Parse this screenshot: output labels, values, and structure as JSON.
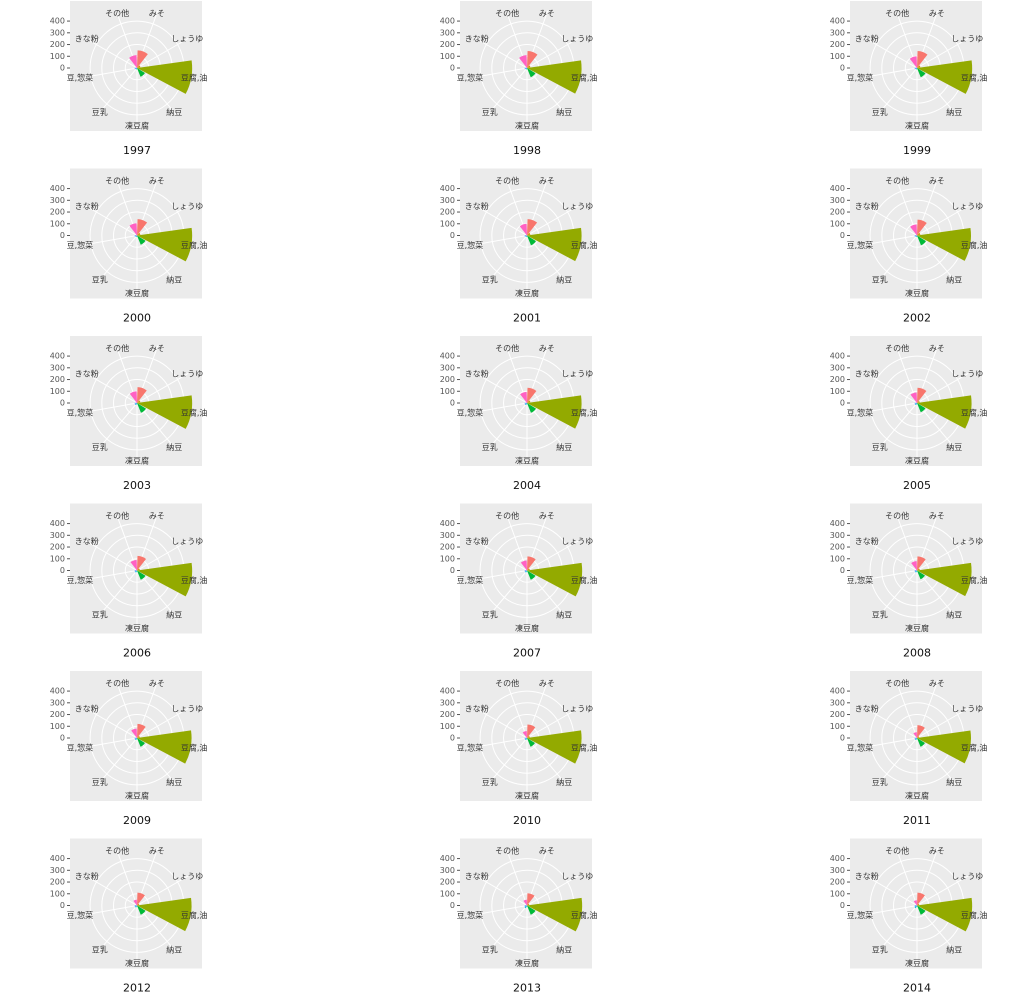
{
  "chart_data": [
    {
      "type": "polar_bar",
      "title": "1997",
      "categories": [
        "みそ",
        "しょうゆ",
        "豆腐,油",
        "納豆",
        "凍豆腐",
        "豆乳",
        "豆,惣菜",
        "きな粉",
        "その他"
      ],
      "values": [
        150,
        30,
        470,
        80,
        10,
        15,
        20,
        10,
        110
      ],
      "colors": [
        "#F8766D",
        "#D39200",
        "#93AA00",
        "#00BA38",
        "#00C19F",
        "#00B9E3",
        "#619CFF",
        "#DB72FB",
        "#FF61C3"
      ],
      "ylim": [
        0,
        520
      ],
      "yticks": [
        0,
        100,
        200,
        300,
        400
      ]
    },
    {
      "type": "polar_bar",
      "title": "1998",
      "categories": [
        "みそ",
        "しょうゆ",
        "豆腐,油",
        "納豆",
        "凍豆腐",
        "豆乳",
        "豆,惣菜",
        "きな粉",
        "その他"
      ],
      "values": [
        145,
        30,
        465,
        85,
        10,
        15,
        20,
        10,
        110
      ],
      "colors": [
        "#F8766D",
        "#D39200",
        "#93AA00",
        "#00BA38",
        "#00C19F",
        "#00B9E3",
        "#619CFF",
        "#DB72FB",
        "#FF61C3"
      ],
      "ylim": [
        0,
        520
      ],
      "yticks": [
        0,
        100,
        200,
        300,
        400
      ]
    },
    {
      "type": "polar_bar",
      "title": "1999",
      "categories": [
        "みそ",
        "しょうゆ",
        "豆腐,油",
        "納豆",
        "凍豆腐",
        "豆乳",
        "豆,惣菜",
        "きな粉",
        "その他"
      ],
      "values": [
        145,
        30,
        470,
        85,
        10,
        15,
        20,
        10,
        100
      ],
      "colors": [
        "#F8766D",
        "#D39200",
        "#93AA00",
        "#00BA38",
        "#00C19F",
        "#00B9E3",
        "#619CFF",
        "#DB72FB",
        "#FF61C3"
      ],
      "ylim": [
        0,
        520
      ],
      "yticks": [
        0,
        100,
        200,
        300,
        400
      ]
    },
    {
      "type": "polar_bar",
      "title": "2000",
      "categories": [
        "みそ",
        "しょうゆ",
        "豆腐,油",
        "納豆",
        "凍豆腐",
        "豆乳",
        "豆,惣菜",
        "きな粉",
        "その他"
      ],
      "values": [
        140,
        30,
        470,
        85,
        10,
        15,
        20,
        10,
        105
      ],
      "colors": [
        "#F8766D",
        "#D39200",
        "#93AA00",
        "#00BA38",
        "#00C19F",
        "#00B9E3",
        "#619CFF",
        "#DB72FB",
        "#FF61C3"
      ],
      "ylim": [
        0,
        520
      ],
      "yticks": [
        0,
        100,
        200,
        300,
        400
      ]
    },
    {
      "type": "polar_bar",
      "title": "2001",
      "categories": [
        "みそ",
        "しょうゆ",
        "豆腐,油",
        "納豆",
        "凍豆腐",
        "豆乳",
        "豆,惣菜",
        "きな粉",
        "その他"
      ],
      "values": [
        140,
        30,
        465,
        90,
        10,
        15,
        20,
        10,
        100
      ],
      "colors": [
        "#F8766D",
        "#D39200",
        "#93AA00",
        "#00BA38",
        "#00C19F",
        "#00B9E3",
        "#619CFF",
        "#DB72FB",
        "#FF61C3"
      ],
      "ylim": [
        0,
        520
      ],
      "yticks": [
        0,
        100,
        200,
        300,
        400
      ]
    },
    {
      "type": "polar_bar",
      "title": "2002",
      "categories": [
        "みそ",
        "しょうゆ",
        "豆腐,油",
        "納豆",
        "凍豆腐",
        "豆乳",
        "豆,惣菜",
        "きな粉",
        "その他"
      ],
      "values": [
        135,
        30,
        460,
        90,
        10,
        15,
        20,
        10,
        95
      ],
      "colors": [
        "#F8766D",
        "#D39200",
        "#93AA00",
        "#00BA38",
        "#00C19F",
        "#00B9E3",
        "#619CFF",
        "#DB72FB",
        "#FF61C3"
      ],
      "ylim": [
        0,
        520
      ],
      "yticks": [
        0,
        100,
        200,
        300,
        400
      ]
    },
    {
      "type": "polar_bar",
      "title": "2003",
      "categories": [
        "みそ",
        "しょうゆ",
        "豆腐,油",
        "納豆",
        "凍豆腐",
        "豆乳",
        "豆,惣菜",
        "きな粉",
        "その他"
      ],
      "values": [
        135,
        30,
        470,
        90,
        10,
        20,
        20,
        10,
        100
      ],
      "colors": [
        "#F8766D",
        "#D39200",
        "#93AA00",
        "#00BA38",
        "#00C19F",
        "#00B9E3",
        "#619CFF",
        "#DB72FB",
        "#FF61C3"
      ],
      "ylim": [
        0,
        520
      ],
      "yticks": [
        0,
        100,
        200,
        300,
        400
      ]
    },
    {
      "type": "polar_bar",
      "title": "2004",
      "categories": [
        "みそ",
        "しょうゆ",
        "豆腐,油",
        "納豆",
        "凍豆腐",
        "豆乳",
        "豆,惣菜",
        "きな粉",
        "その他"
      ],
      "values": [
        130,
        30,
        465,
        90,
        10,
        20,
        20,
        10,
        95
      ],
      "colors": [
        "#F8766D",
        "#D39200",
        "#93AA00",
        "#00BA38",
        "#00C19F",
        "#00B9E3",
        "#619CFF",
        "#DB72FB",
        "#FF61C3"
      ],
      "ylim": [
        0,
        520
      ],
      "yticks": [
        0,
        100,
        200,
        300,
        400
      ]
    },
    {
      "type": "polar_bar",
      "title": "2005",
      "categories": [
        "みそ",
        "しょうゆ",
        "豆腐,油",
        "納豆",
        "凍豆腐",
        "豆乳",
        "豆,惣菜",
        "きな粉",
        "その他"
      ],
      "values": [
        130,
        25,
        465,
        85,
        10,
        20,
        20,
        10,
        90
      ],
      "colors": [
        "#F8766D",
        "#D39200",
        "#93AA00",
        "#00BA38",
        "#00C19F",
        "#00B9E3",
        "#619CFF",
        "#DB72FB",
        "#FF61C3"
      ],
      "ylim": [
        0,
        520
      ],
      "yticks": [
        0,
        100,
        200,
        300,
        400
      ]
    },
    {
      "type": "polar_bar",
      "title": "2006",
      "categories": [
        "みそ",
        "しょうゆ",
        "豆腐,油",
        "納豆",
        "凍豆腐",
        "豆乳",
        "豆,惣菜",
        "きな粉",
        "その他"
      ],
      "values": [
        125,
        25,
        470,
        85,
        10,
        20,
        20,
        10,
        90
      ],
      "colors": [
        "#F8766D",
        "#D39200",
        "#93AA00",
        "#00BA38",
        "#00C19F",
        "#00B9E3",
        "#619CFF",
        "#DB72FB",
        "#FF61C3"
      ],
      "ylim": [
        0,
        520
      ],
      "yticks": [
        0,
        100,
        200,
        300,
        400
      ]
    },
    {
      "type": "polar_bar",
      "title": "2007",
      "categories": [
        "みそ",
        "しょうゆ",
        "豆腐,油",
        "納豆",
        "凍豆腐",
        "豆乳",
        "豆,惣菜",
        "きな粉",
        "その他"
      ],
      "values": [
        120,
        25,
        470,
        85,
        10,
        20,
        20,
        10,
        85
      ],
      "colors": [
        "#F8766D",
        "#D39200",
        "#93AA00",
        "#00BA38",
        "#00C19F",
        "#00B9E3",
        "#619CFF",
        "#DB72FB",
        "#FF61C3"
      ],
      "ylim": [
        0,
        520
      ],
      "yticks": [
        0,
        100,
        200,
        300,
        400
      ]
    },
    {
      "type": "polar_bar",
      "title": "2008",
      "categories": [
        "みそ",
        "しょうゆ",
        "豆腐,油",
        "納豆",
        "凍豆腐",
        "豆乳",
        "豆,惣菜",
        "きな粉",
        "その他"
      ],
      "values": [
        120,
        25,
        465,
        80,
        10,
        20,
        20,
        10,
        80
      ],
      "colors": [
        "#F8766D",
        "#D39200",
        "#93AA00",
        "#00BA38",
        "#00C19F",
        "#00B9E3",
        "#619CFF",
        "#DB72FB",
        "#FF61C3"
      ],
      "ylim": [
        0,
        520
      ],
      "yticks": [
        0,
        100,
        200,
        300,
        400
      ]
    },
    {
      "type": "polar_bar",
      "title": "2009",
      "categories": [
        "みそ",
        "しょうゆ",
        "豆腐,油",
        "納豆",
        "凍豆腐",
        "豆乳",
        "豆,惣菜",
        "きな粉",
        "その他"
      ],
      "values": [
        120,
        25,
        465,
        80,
        10,
        20,
        20,
        10,
        80
      ],
      "colors": [
        "#F8766D",
        "#D39200",
        "#93AA00",
        "#00BA38",
        "#00C19F",
        "#00B9E3",
        "#619CFF",
        "#DB72FB",
        "#FF61C3"
      ],
      "ylim": [
        0,
        520
      ],
      "yticks": [
        0,
        100,
        200,
        300,
        400
      ]
    },
    {
      "type": "polar_bar",
      "title": "2010",
      "categories": [
        "みそ",
        "しょうゆ",
        "豆腐,油",
        "納豆",
        "凍豆腐",
        "豆乳",
        "豆,惣菜",
        "きな粉",
        "その他"
      ],
      "values": [
        115,
        25,
        465,
        80,
        10,
        20,
        20,
        10,
        60
      ],
      "colors": [
        "#F8766D",
        "#D39200",
        "#93AA00",
        "#00BA38",
        "#00C19F",
        "#00B9E3",
        "#619CFF",
        "#DB72FB",
        "#FF61C3"
      ],
      "ylim": [
        0,
        520
      ],
      "yticks": [
        0,
        100,
        200,
        300,
        400
      ]
    },
    {
      "type": "polar_bar",
      "title": "2011",
      "categories": [
        "みそ",
        "しょうゆ",
        "豆腐,油",
        "納豆",
        "凍豆腐",
        "豆乳",
        "豆,惣菜",
        "きな粉",
        "その他"
      ],
      "values": [
        110,
        20,
        460,
        80,
        10,
        20,
        20,
        10,
        50
      ],
      "colors": [
        "#F8766D",
        "#D39200",
        "#93AA00",
        "#00BA38",
        "#00C19F",
        "#00B9E3",
        "#619CFF",
        "#DB72FB",
        "#FF61C3"
      ],
      "ylim": [
        0,
        520
      ],
      "yticks": [
        0,
        100,
        200,
        300,
        400
      ]
    },
    {
      "type": "polar_bar",
      "title": "2012",
      "categories": [
        "みそ",
        "しょうゆ",
        "豆腐,油",
        "納豆",
        "凍豆腐",
        "豆乳",
        "豆,惣菜",
        "きな粉",
        "その他"
      ],
      "values": [
        110,
        20,
        465,
        85,
        10,
        20,
        20,
        10,
        50
      ],
      "colors": [
        "#F8766D",
        "#D39200",
        "#93AA00",
        "#00BA38",
        "#00C19F",
        "#00B9E3",
        "#619CFF",
        "#DB72FB",
        "#FF61C3"
      ],
      "ylim": [
        0,
        520
      ],
      "yticks": [
        0,
        100,
        200,
        300,
        400
      ]
    },
    {
      "type": "polar_bar",
      "title": "2013",
      "categories": [
        "みそ",
        "しょうゆ",
        "豆腐,油",
        "納豆",
        "凍豆腐",
        "豆乳",
        "豆,惣菜",
        "きな粉",
        "その他"
      ],
      "values": [
        105,
        20,
        470,
        85,
        10,
        25,
        20,
        10,
        50
      ],
      "colors": [
        "#F8766D",
        "#D39200",
        "#93AA00",
        "#00BA38",
        "#00C19F",
        "#00B9E3",
        "#619CFF",
        "#DB72FB",
        "#FF61C3"
      ],
      "ylim": [
        0,
        520
      ],
      "yticks": [
        0,
        100,
        200,
        300,
        400
      ]
    },
    {
      "type": "polar_bar",
      "title": "2014",
      "categories": [
        "みそ",
        "しょうゆ",
        "豆腐,油",
        "納豆",
        "凍豆腐",
        "豆乳",
        "豆,惣菜",
        "きな粉",
        "その他"
      ],
      "values": [
        110,
        20,
        470,
        85,
        10,
        25,
        20,
        10,
        45
      ],
      "colors": [
        "#F8766D",
        "#D39200",
        "#93AA00",
        "#00BA38",
        "#00C19F",
        "#00B9E3",
        "#619CFF",
        "#DB72FB",
        "#FF61C3"
      ],
      "ylim": [
        0,
        520
      ],
      "yticks": [
        0,
        100,
        200,
        300,
        400
      ]
    }
  ]
}
